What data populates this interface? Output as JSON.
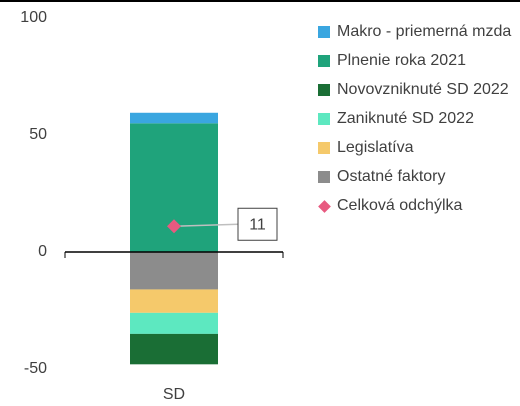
{
  "chart_data": {
    "type": "stacked-bar",
    "categories": [
      "SD"
    ],
    "series": [
      {
        "name": "Makro - priemerná mzda",
        "color": "#3aa6e0",
        "values": [
          4.5
        ]
      },
      {
        "name": "Plnenie roka 2021",
        "color": "#1fa37b",
        "values": [
          55
        ]
      },
      {
        "name": "Novovzniknuté SD 2022",
        "color": "#1a6e35",
        "values": [
          -13
        ]
      },
      {
        "name": "Zaniknuté SD 2022",
        "color": "#5de8c0",
        "values": [
          -9
        ]
      },
      {
        "name": "Legislatíva",
        "color": "#f5c96b",
        "values": [
          -10
        ]
      },
      {
        "name": "Ostatné faktory",
        "color": "#8c8c8c",
        "values": [
          -16
        ]
      },
      {
        "name": "Celková odchýlka",
        "color": "#e85a80",
        "values": [
          11
        ],
        "marker": "diamond"
      }
    ],
    "ylim": [
      -55,
      100
    ],
    "yticks": [
      -50,
      0,
      50,
      100
    ],
    "grid": false,
    "legend": "right"
  }
}
